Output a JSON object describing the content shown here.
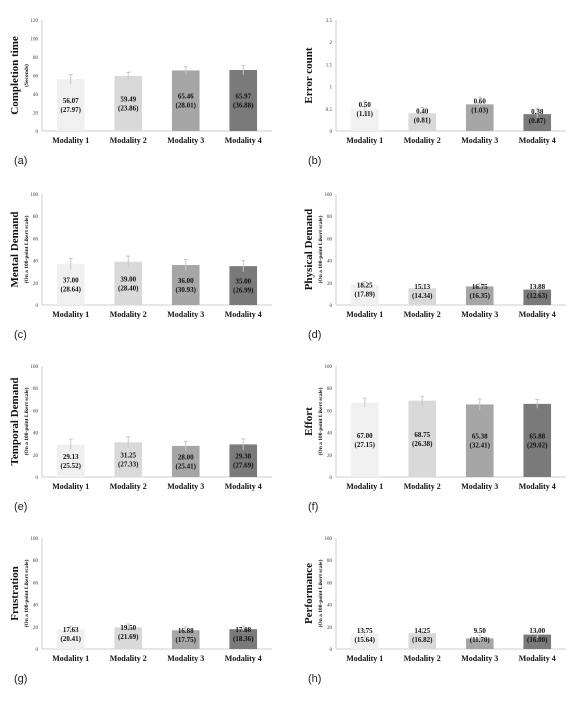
{
  "chart_data": [
    {
      "id": "a",
      "type": "bar",
      "panel_label": "(a)",
      "ylabel": "Completion time",
      "ylabel_sub": "(Seconds)",
      "ylim": [
        0,
        120
      ],
      "yticks": [
        0,
        20,
        40,
        60,
        80,
        100,
        120
      ],
      "categories": [
        "Modality 1",
        "Modality 2",
        "Modality 3",
        "Modality 4"
      ],
      "values": [
        56.07,
        59.49,
        65.46,
        65.97
      ],
      "value_labels": [
        "56.07",
        "59.49",
        "65.46",
        "65.97"
      ],
      "sd_labels": [
        "(27.97)",
        "(23.86)",
        "(28.01)",
        "(36.88)"
      ],
      "error": [
        5,
        4,
        4,
        5
      ]
    },
    {
      "id": "b",
      "type": "bar",
      "panel_label": "(b)",
      "ylabel": "Error count",
      "ylabel_sub": "",
      "ylim": [
        0,
        2.5
      ],
      "yticks": [
        0,
        0.5,
        1,
        1.5,
        2,
        2.5
      ],
      "ytick_labels": [
        "0",
        "0.5",
        "1",
        "1.5",
        "2",
        "2.5"
      ],
      "categories": [
        "Modality 1",
        "Modality 2",
        "Modality 3",
        "Modality 4"
      ],
      "values": [
        0.5,
        0.4,
        0.6,
        0.38
      ],
      "value_labels": [
        "0.50",
        "0.40",
        "0.60",
        "0.38"
      ],
      "sd_labels": [
        "(1.11)",
        "(0.81)",
        "(1.03)",
        "(0.87)"
      ],
      "error": [
        0.18,
        0.13,
        0.16,
        0.14
      ]
    },
    {
      "id": "c",
      "type": "bar",
      "panel_label": "(c)",
      "ylabel": "Mental Demand",
      "ylabel_sub": "(On a 100-point Likert scale)",
      "ylim": [
        0,
        100
      ],
      "yticks": [
        0,
        20,
        40,
        60,
        80,
        100
      ],
      "categories": [
        "Modality 1",
        "Modality 2",
        "Modality 3",
        "Modality 4"
      ],
      "values": [
        37.0,
        39.0,
        36.0,
        35.0
      ],
      "value_labels": [
        "37.00",
        "39.00",
        "36.00",
        "35.00"
      ],
      "sd_labels": [
        "(28.64)",
        "(28.40)",
        "(30.93)",
        "(26.99)"
      ],
      "error": [
        5,
        5,
        5,
        5
      ]
    },
    {
      "id": "d",
      "type": "bar",
      "panel_label": "(d)",
      "ylabel": "Physical Demand",
      "ylabel_sub": "(On a 100-point Likert scale)",
      "ylim": [
        0,
        100
      ],
      "yticks": [
        0,
        20,
        40,
        60,
        80,
        100
      ],
      "categories": [
        "Modality 1",
        "Modality 2",
        "Modality 3",
        "Modality 4"
      ],
      "values": [
        18.25,
        15.13,
        16.75,
        13.88
      ],
      "value_labels": [
        "18.25",
        "15.13",
        "16.75",
        "13.88"
      ],
      "sd_labels": [
        "(17.89)",
        "(14.34)",
        "(16.35)",
        "(12.63)"
      ],
      "error": [
        3,
        3,
        3,
        3
      ]
    },
    {
      "id": "e",
      "type": "bar",
      "panel_label": "(e)",
      "ylabel": "Temporal Demand",
      "ylabel_sub": "(On a 100-point Likert scale)",
      "ylim": [
        0,
        100
      ],
      "yticks": [
        0,
        20,
        40,
        60,
        80,
        100
      ],
      "categories": [
        "Modality 1",
        "Modality 2",
        "Modality 3",
        "Modality 4"
      ],
      "values": [
        29.13,
        31.25,
        28.0,
        29.38
      ],
      "value_labels": [
        "29.13",
        "31.25",
        "28.00",
        "29.38"
      ],
      "sd_labels": [
        "(25.52)",
        "(27.33)",
        "(25.41)",
        "(27.69)"
      ],
      "error": [
        5,
        5,
        4,
        5
      ]
    },
    {
      "id": "f",
      "type": "bar",
      "panel_label": "(f)",
      "ylabel": "Effort",
      "ylabel_sub": "(On a 100-point Likert scale)",
      "ylim": [
        0,
        100
      ],
      "yticks": [
        0,
        20,
        40,
        60,
        80,
        100
      ],
      "categories": [
        "Modality 1",
        "Modality 2",
        "Modality 3",
        "Modality 4"
      ],
      "values": [
        67.0,
        68.75,
        65.38,
        65.88
      ],
      "value_labels": [
        "67.00",
        "68.75",
        "65.38",
        "65.88"
      ],
      "sd_labels": [
        "(27.15)",
        "(26.38)",
        "(32.41)",
        "(29.02)"
      ],
      "error": [
        4,
        4,
        5,
        4
      ]
    },
    {
      "id": "g",
      "type": "bar",
      "panel_label": "(g)",
      "ylabel": "Frustration",
      "ylabel_sub": "(On a 100-point Likert scale)",
      "ylim": [
        0,
        100
      ],
      "yticks": [
        0,
        20,
        40,
        60,
        80,
        100
      ],
      "categories": [
        "Modality 1",
        "Modality 2",
        "Modality 3",
        "Modality 4"
      ],
      "values": [
        17.63,
        19.5,
        16.88,
        17.88
      ],
      "value_labels": [
        "17.63",
        "19.50",
        "16.88",
        "17.88"
      ],
      "sd_labels": [
        "(20.41)",
        "(21.69)",
        "(17.75)",
        "(18.36)"
      ],
      "error": [
        3,
        3,
        3,
        3
      ]
    },
    {
      "id": "h",
      "type": "bar",
      "panel_label": "(h)",
      "ylabel": "Performance",
      "ylabel_sub": "(On a 100-point Likert scale)",
      "ylim": [
        0,
        100
      ],
      "yticks": [
        0,
        20,
        40,
        60,
        80,
        100
      ],
      "categories": [
        "Modality 1",
        "Modality 2",
        "Modality 3",
        "Modality 4"
      ],
      "values": [
        13.75,
        14.25,
        9.5,
        13.0
      ],
      "value_labels": [
        "13.75",
        "14.25",
        "9.50",
        "13.00"
      ],
      "sd_labels": [
        "(15.64)",
        "(16.82)",
        "(11.70)",
        "(16.00)"
      ],
      "error": [
        4,
        4,
        3,
        3
      ]
    }
  ],
  "colors": {
    "bars": [
      "#f0f0f0",
      "#d9d9d9",
      "#a6a6a6",
      "#7a7a7a"
    ],
    "axis": "#bfbfbf",
    "error": "#c8c8c8",
    "text": "#111111"
  }
}
